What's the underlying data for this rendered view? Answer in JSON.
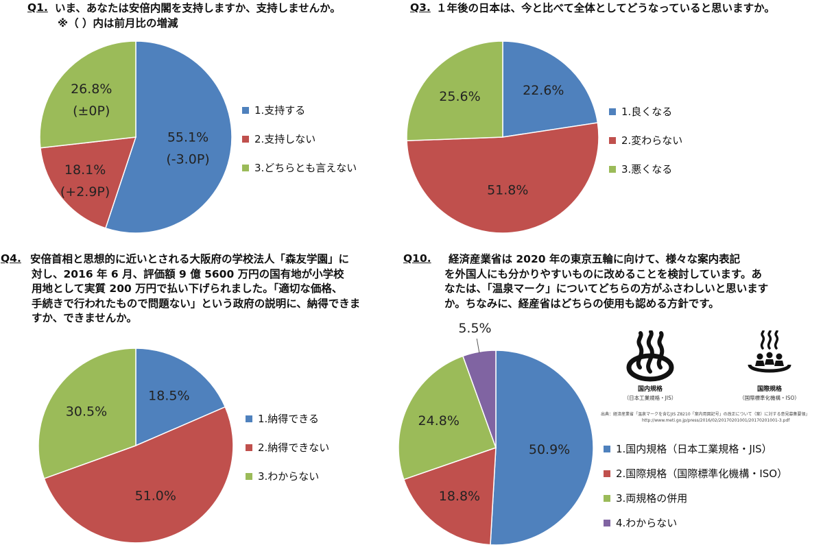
{
  "colors": {
    "blue": "#4f81bd",
    "red": "#c0504d",
    "green": "#9bbb59",
    "purple": "#8064a2"
  },
  "q1": {
    "num": "Q1.",
    "text": "いま、あなたは安倍内閣を支持しますか、支持しませんか。",
    "note": "※（ ）内は前月比の増減"
  },
  "q3": {
    "num": "Q3.",
    "text": "１年後の日本は、今と比べて全体としてどうなっていると思いますか。"
  },
  "q4": {
    "num": "Q4.",
    "lines": [
      "安倍首相と思想的に近いとされる大阪府の学校法人「森友学園」に",
      "対し、2016 年 6 月、評価額 9 億 5600 万円の国有地が小学校",
      "用地として実質 200 万円で払い下げられました。「適切な価格、",
      "手続きで行われたもので問題ない」という政府の説明に、納得できま",
      "すか、できませんか。"
    ]
  },
  "q10": {
    "num": "Q10.",
    "lines": [
      "経済産業省は 2020 年の東京五輪に向けて、様々な案内表記",
      "を外国人にも分かりやすいものに改めることを検討しています。あ",
      "なたは、「温泉マーク」についてどちらの方がふさわしいと思います",
      "か。ちなみに、経産省はどちらの使用も認める方針です。"
    ],
    "domestic_caption": "国内規格",
    "domestic_sub": "（日本工業規格・JIS）",
    "intl_caption": "国際規格",
    "intl_sub": "（国際標準化機構・ISO）",
    "source_line1": "出典：経済産業省「温泉マークを含むJIS Z8210「案内用図記号」の改正について（案）に対する意見募集要領」",
    "source_line2": "http://www.meti.go.jp/press/2016/02/20170201001/20170201001-3.pdf"
  },
  "chart_data": [
    {
      "type": "pie",
      "id": "q1",
      "labels": [
        "1.支持する",
        "2.支持しない",
        "3.どちらとも言えない"
      ],
      "values": [
        55.1,
        18.1,
        26.8
      ],
      "value_labels": [
        "55.1%",
        "18.1%",
        "26.8%"
      ],
      "change_labels": [
        "(-3.0P)",
        "(+2.9P)",
        "(±0P)"
      ],
      "colors": [
        "#4f81bd",
        "#c0504d",
        "#9bbb59"
      ],
      "start": "12 o'clock, clockwise",
      "legend": "right"
    },
    {
      "type": "pie",
      "id": "q3",
      "labels": [
        "1.良くなる",
        "2.変わらない",
        "3.悪くなる"
      ],
      "values": [
        22.6,
        51.8,
        25.6
      ],
      "value_labels": [
        "22.6%",
        "51.8%",
        "25.6%"
      ],
      "colors": [
        "#4f81bd",
        "#c0504d",
        "#9bbb59"
      ],
      "start": "12 o'clock, clockwise",
      "legend": "right"
    },
    {
      "type": "pie",
      "id": "q4",
      "labels": [
        "1.納得できる",
        "2.納得できない",
        "3.わからない"
      ],
      "values": [
        18.5,
        51.0,
        30.5
      ],
      "value_labels": [
        "18.5%",
        "51.0%",
        "30.5%"
      ],
      "colors": [
        "#4f81bd",
        "#c0504d",
        "#9bbb59"
      ],
      "start": "12 o'clock, clockwise",
      "legend": "right"
    },
    {
      "type": "pie",
      "id": "q10",
      "labels": [
        "1.国内規格（日本工業規格・JIS）",
        "2.国際規格（国際標準化機構・ISO）",
        "3.両規格の併用",
        "4.わからない"
      ],
      "values": [
        50.9,
        18.8,
        24.8,
        5.5
      ],
      "value_labels": [
        "50.9%",
        "18.8%",
        "24.8%",
        "5.5%"
      ],
      "colors": [
        "#4f81bd",
        "#c0504d",
        "#9bbb59",
        "#8064a2"
      ],
      "start": "12 o'clock, clockwise",
      "legend": "bottom-right"
    }
  ]
}
